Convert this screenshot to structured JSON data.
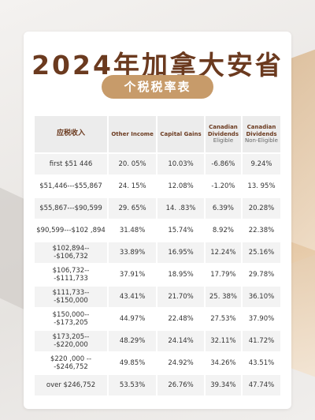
{
  "title": "2024年加拿大安省",
  "subtitle": "个税税率表",
  "table": {
    "headers": {
      "income": "应税收入",
      "other": "Other Income",
      "capital": "Capital Gains",
      "elig_line1": "Canadian",
      "elig_line2": "Dividends",
      "elig_sub": "Eligible",
      "nonelig_line1": "Canadian",
      "nonelig_line2": "Dividends",
      "nonelig_sub": "Non-Eligible"
    },
    "rows": [
      {
        "income": "first $51 446",
        "other": "20. 05%",
        "capital": "10.03%",
        "eligible": "-6.86%",
        "non_eligible": "9.24%"
      },
      {
        "income": "$51,446---$55,867",
        "other": "24. 15%",
        "capital": "12.08%",
        "eligible": "-1.20%",
        "non_eligible": "13. 95%"
      },
      {
        "income": "$55,867---$90,599",
        "other": "29. 65%",
        "capital": "14. .83%",
        "eligible": "6.39%",
        "non_eligible": "20.28%"
      },
      {
        "income": "$90,599---$102 ,894",
        "other": "31.48%",
        "capital": "15.74%",
        "eligible": "8.92%",
        "non_eligible": "22.38%"
      },
      {
        "income": "$102,894---$106,732",
        "other": "33.89%",
        "capital": "16.95%",
        "eligible": "12.24%",
        "non_eligible": "25.16%"
      },
      {
        "income": "$106,732---$111,733",
        "other": "37.91%",
        "capital": "18.95%",
        "eligible": "17.79%",
        "non_eligible": "29.78%"
      },
      {
        "income": "$111,733---$150,000",
        "other": "43.41%",
        "capital": "21.70%",
        "eligible": "25. 38%",
        "non_eligible": "36.10%"
      },
      {
        "income": "$150,000---$173,205",
        "other": "44.97%",
        "capital": "22.48%",
        "eligible": "27.53%",
        "non_eligible": "37.90%"
      },
      {
        "income": "$173,205---$220,000",
        "other": "48.29%",
        "capital": "24.14%",
        "eligible": "32.11%",
        "non_eligible": "41.72%"
      },
      {
        "income": "$220 ,000 ---$246,752",
        "other": "49.85%",
        "capital": "24.92%",
        "eligible": "34.26%",
        "non_eligible": "43.51%"
      },
      {
        "income": "over $246,752",
        "other": "53.53%",
        "capital": "26.76%",
        "eligible": "39.34%",
        "non_eligible": "47.74%"
      }
    ]
  },
  "colors": {
    "title": "#6b3a1f",
    "pill": "#c79b6a",
    "header_bg": "#ececec"
  }
}
